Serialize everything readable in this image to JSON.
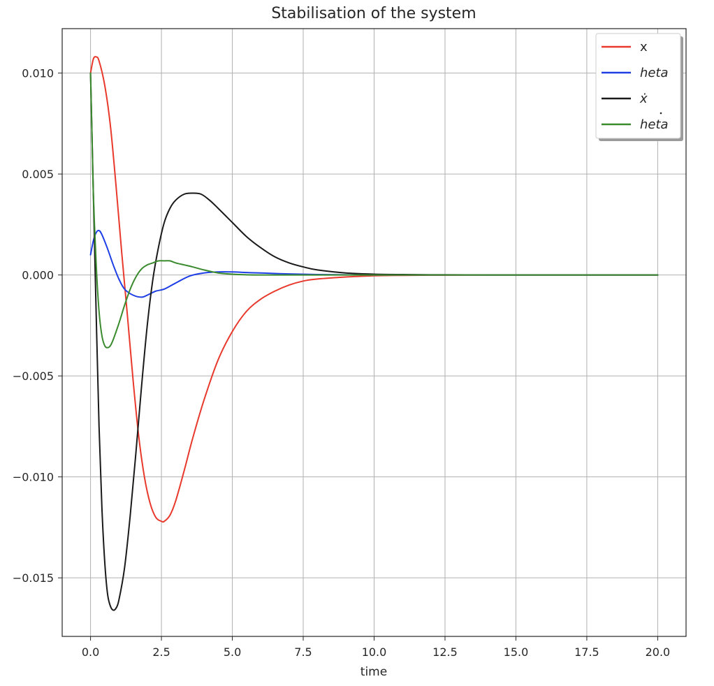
{
  "chart_data": {
    "type": "line",
    "title": "Stabilisation of the system",
    "xlabel": "time",
    "ylabel": "",
    "xlim": [
      -1.0,
      21.0
    ],
    "ylim": [
      -0.0179,
      0.0122
    ],
    "xticks": [
      0.0,
      2.5,
      5.0,
      7.5,
      10.0,
      12.5,
      15.0,
      17.5,
      20.0
    ],
    "xtick_labels": [
      "0.0",
      "2.5",
      "5.0",
      "7.5",
      "10.0",
      "12.5",
      "15.0",
      "17.5",
      "20.0"
    ],
    "yticks": [
      0.01,
      0.005,
      0.0,
      -0.005,
      -0.01,
      -0.015
    ],
    "ytick_labels": [
      "0.010",
      "0.005",
      "0.000",
      "−0.005",
      "−0.010",
      "−0.015"
    ],
    "grid": true,
    "legend_position": "top-right",
    "series": [
      {
        "name": "x",
        "color": "#e8392c",
        "x": [
          0.0,
          0.1,
          0.2,
          0.3,
          0.5,
          0.7,
          0.9,
          1.1,
          1.3,
          1.5,
          1.7,
          1.9,
          2.1,
          2.3,
          2.5,
          2.6,
          2.8,
          3.0,
          3.3,
          3.6,
          4.0,
          4.5,
          5.0,
          5.5,
          6.0,
          6.5,
          7.0,
          7.5,
          8.0,
          9.0,
          10.0,
          11.0,
          12.0,
          14.0,
          16.0,
          18.0,
          20.0
        ],
        "y": [
          0.01,
          0.0107,
          0.0108,
          0.0106,
          0.0094,
          0.0074,
          0.0044,
          0.0011,
          -0.002,
          -0.0052,
          -0.008,
          -0.01,
          -0.0113,
          -0.012,
          -0.0122,
          -0.0122,
          -0.0119,
          -0.0112,
          -0.0097,
          -0.0081,
          -0.0062,
          -0.0042,
          -0.0028,
          -0.0018,
          -0.0012,
          -0.0008,
          -0.0005,
          -0.0003,
          -0.0002,
          -0.0001,
          -4e-05,
          -2e-05,
          -1e-05,
          0.0,
          0.0,
          0.0,
          0.0
        ]
      },
      {
        "name": "heta",
        "math": true,
        "color": "#1f3fe6",
        "x": [
          0.0,
          0.1,
          0.2,
          0.3,
          0.4,
          0.6,
          0.8,
          1.0,
          1.2,
          1.5,
          1.8,
          2.0,
          2.3,
          2.6,
          3.0,
          3.5,
          4.0,
          4.5,
          5.0,
          5.5,
          6.0,
          7.0,
          8.0,
          9.0,
          10.0,
          12.0,
          15.0,
          20.0
        ],
        "y": [
          0.001,
          0.0017,
          0.0021,
          0.0022,
          0.002,
          0.0013,
          0.0005,
          -0.0002,
          -0.0007,
          -0.001,
          -0.0011,
          -0.001,
          -0.0008,
          -0.0007,
          -0.0004,
          -5e-05,
          0.0001,
          0.00015,
          0.00015,
          0.00012,
          0.0001,
          5e-05,
          2e-05,
          1e-05,
          0.0,
          0.0,
          0.0,
          0.0
        ]
      },
      {
        "name": "ẋ",
        "math": true,
        "color": "#1a1a1a",
        "x": [
          0.0,
          0.05,
          0.1,
          0.2,
          0.3,
          0.4,
          0.5,
          0.6,
          0.7,
          0.8,
          0.9,
          1.0,
          1.2,
          1.4,
          1.6,
          1.8,
          2.0,
          2.2,
          2.4,
          2.6,
          2.8,
          3.0,
          3.3,
          3.6,
          3.9,
          4.2,
          4.5,
          5.0,
          5.5,
          6.0,
          6.5,
          7.0,
          7.5,
          8.0,
          9.0,
          10.0,
          11.0,
          12.0,
          14.0,
          17.0,
          20.0
        ],
        "y": [
          0.01,
          0.007,
          0.004,
          -0.002,
          -0.0075,
          -0.0115,
          -0.0142,
          -0.0158,
          -0.0164,
          -0.0166,
          -0.0165,
          -0.0161,
          -0.0145,
          -0.0119,
          -0.0088,
          -0.0055,
          -0.0025,
          -0.0002,
          0.0014,
          0.0026,
          0.0033,
          0.0037,
          0.004,
          0.00405,
          0.004,
          0.0037,
          0.0033,
          0.0026,
          0.0019,
          0.00135,
          0.0009,
          0.0006,
          0.0004,
          0.00025,
          0.0001,
          4e-05,
          2e-05,
          1e-05,
          0.0,
          0.0,
          0.0
        ]
      },
      {
        "name": "heta",
        "math": true,
        "dot": true,
        "color": "#3a8a2e",
        "x": [
          0.0,
          0.05,
          0.1,
          0.2,
          0.3,
          0.4,
          0.5,
          0.6,
          0.7,
          0.8,
          1.0,
          1.2,
          1.4,
          1.6,
          1.8,
          2.0,
          2.2,
          2.4,
          2.6,
          2.8,
          3.0,
          3.3,
          3.6,
          4.0,
          4.5,
          5.0,
          5.5,
          6.0,
          7.0,
          8.0,
          10.0,
          12.0,
          15.0,
          20.0
        ],
        "y": [
          0.01,
          0.007,
          0.004,
          0.0005,
          -0.0018,
          -0.003,
          -0.0035,
          -0.0036,
          -0.0035,
          -0.0032,
          -0.0024,
          -0.0015,
          -0.0007,
          -0.0001,
          0.0003,
          0.0005,
          0.0006,
          0.0007,
          0.0007,
          0.0007,
          0.0006,
          0.0005,
          0.0004,
          0.00025,
          0.0001,
          4e-05,
          1e-05,
          0.0,
          0.0,
          0.0,
          0.0,
          0.0,
          0.0,
          0.0
        ]
      }
    ]
  }
}
